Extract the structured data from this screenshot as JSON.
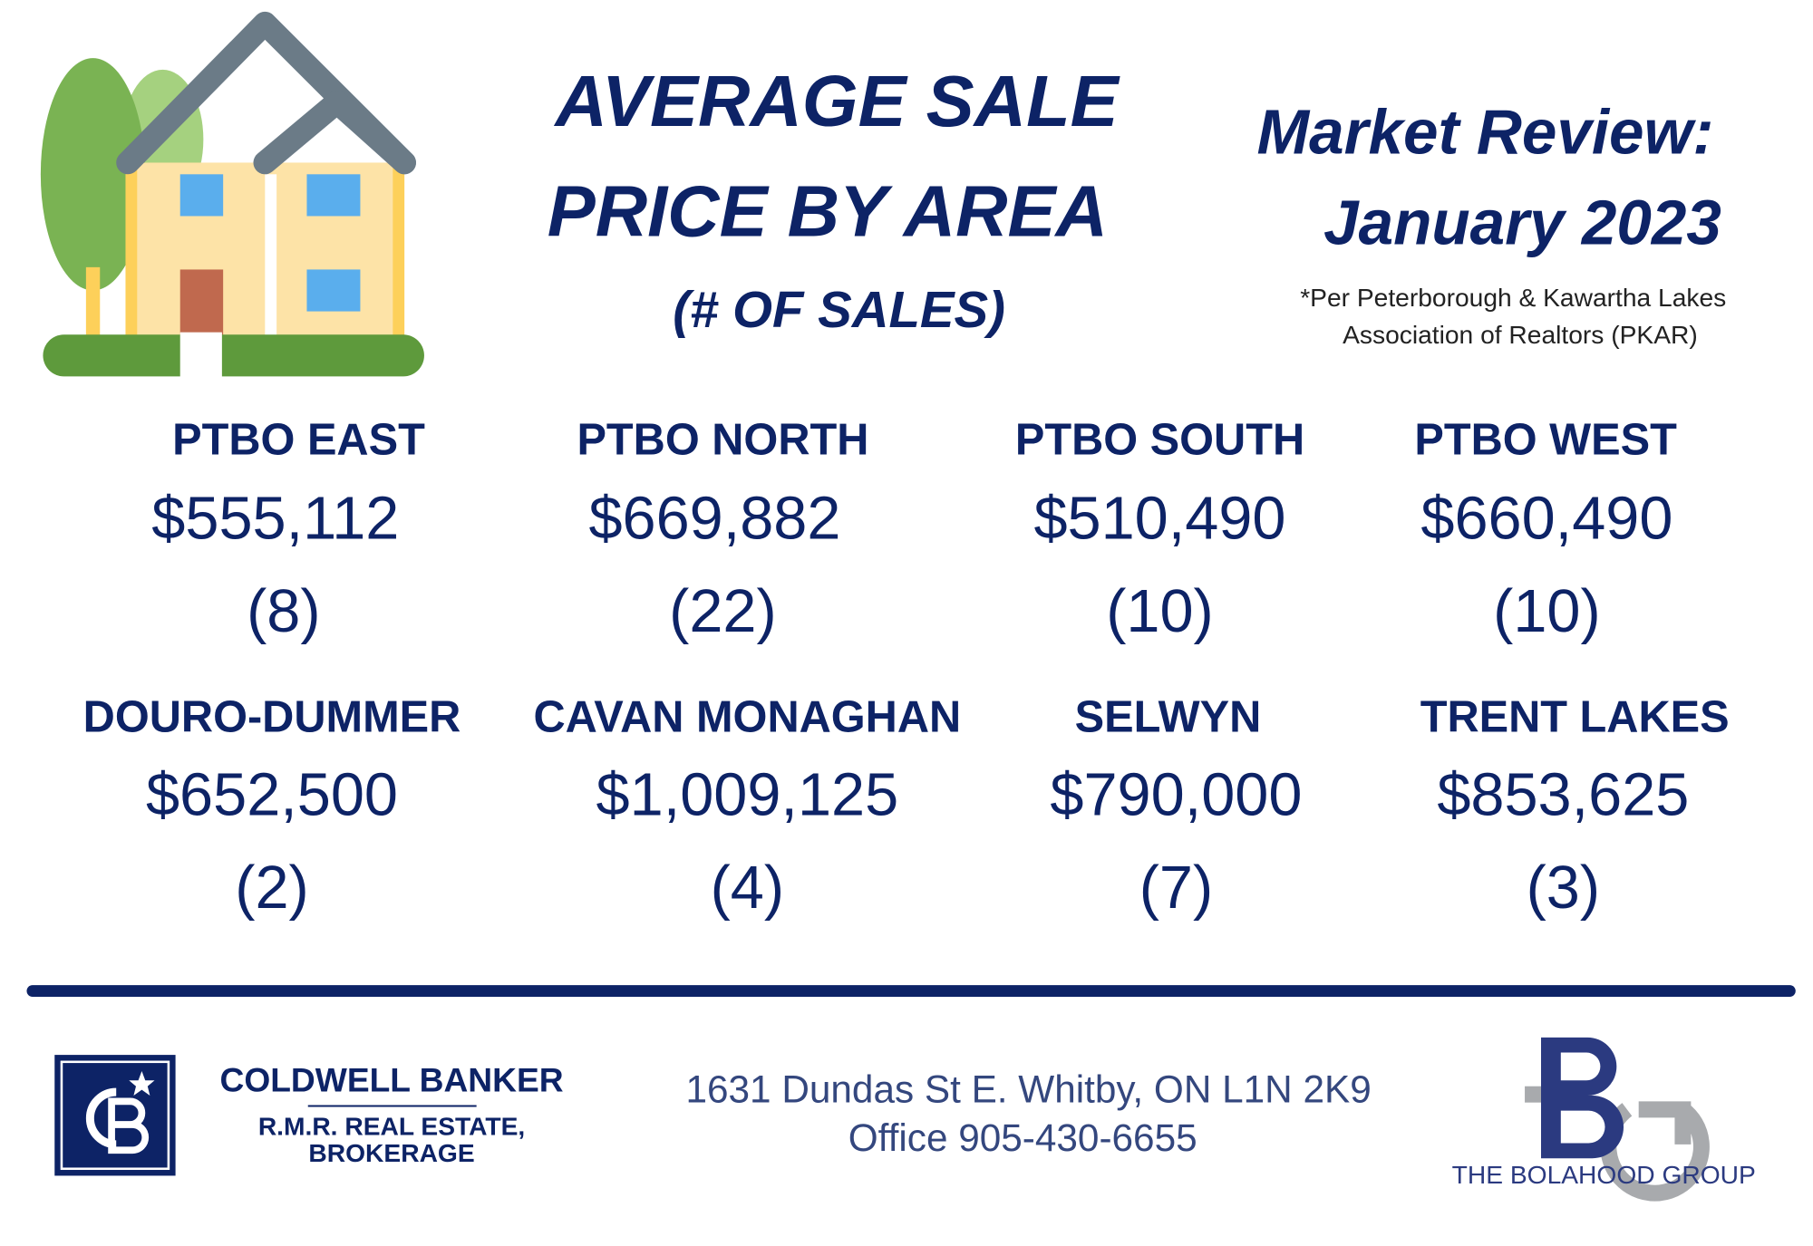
{
  "header": {
    "title_lines": [
      "AVERAGE SALE",
      "PRICE BY AREA"
    ],
    "subtitle": "(# OF SALES)",
    "review_lines": [
      "Market Review:",
      "January 2023"
    ],
    "source_lines": [
      "*Per Peterborough & Kawartha Lakes",
      "Association of Realtors (PKAR)"
    ]
  },
  "areas": [
    {
      "name": "PTBO EAST",
      "price": "$555,112",
      "sales": "(8)"
    },
    {
      "name": "PTBO NORTH",
      "price": "$669,882",
      "sales": "(22)"
    },
    {
      "name": "PTBO SOUTH",
      "price": "$510,490",
      "sales": "(10)"
    },
    {
      "name": "PTBO WEST",
      "price": "$660,490",
      "sales": "(10)"
    },
    {
      "name": "DOURO-DUMMER",
      "price": "$652,500",
      "sales": "(2)"
    },
    {
      "name": "CAVAN MONAGHAN",
      "price": "$1,009,125",
      "sales": "(4)"
    },
    {
      "name": "SELWYN",
      "price": "$790,000",
      "sales": "(7)"
    },
    {
      "name": "TRENT LAKES",
      "price": "$853,625",
      "sales": "(3)"
    }
  ],
  "footer": {
    "brokerage_lines": [
      "COLDWELL BANKER",
      "R.M.R. REAL ESTATE,",
      "BROKERAGE"
    ],
    "address": "1631 Dundas St E. Whitby, ON L1N 2K9",
    "phone_line": "Office 905-430-6655",
    "group": "THE BOLAHOOD GROUP"
  }
}
